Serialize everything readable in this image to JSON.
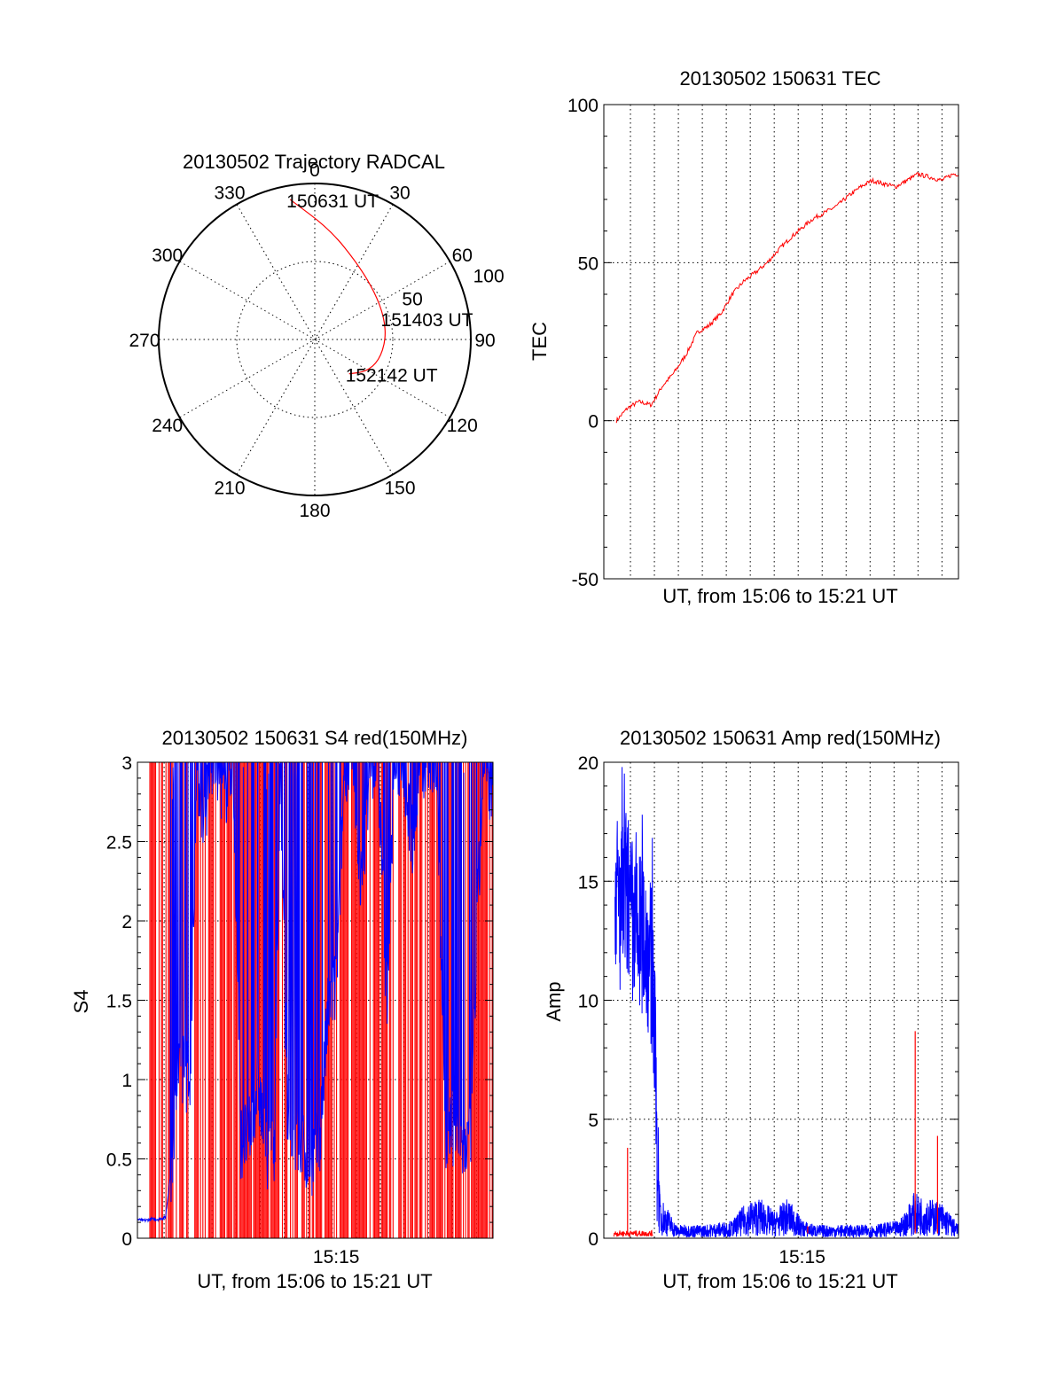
{
  "colors": {
    "red": "#ff0000",
    "blue": "#0000ff",
    "ink": "#000000"
  },
  "chart_data": [
    {
      "id": "trajectory",
      "type": "polar",
      "title": "20130502 Trajectory RADCAL",
      "azimuth_labels": [
        "0",
        "30",
        "60",
        "90",
        "120",
        "150",
        "180",
        "210",
        "240",
        "270",
        "300",
        "330"
      ],
      "radial_ring_labels": [
        "50",
        "100"
      ],
      "series": [
        {
          "name": "trajectory",
          "color": "red",
          "points": [
            {
              "az": 350,
              "el": 8
            },
            {
              "az": 8,
              "el": 26
            },
            {
              "az": 30,
              "el": 40
            },
            {
              "az": 52,
              "el": 46
            },
            {
              "az": 72,
              "el": 48
            },
            {
              "az": 90,
              "el": 49
            },
            {
              "az": 108,
              "el": 51
            },
            {
              "az": 122,
              "el": 55
            },
            {
              "az": 135,
              "el": 62
            }
          ]
        }
      ],
      "annotations": [
        {
          "text": "150631 UT",
          "az": 350,
          "el": 8
        },
        {
          "text": "151403 UT",
          "az": 73,
          "el": 48
        },
        {
          "text": "152142 UT",
          "az": 135,
          "el": 62
        }
      ]
    },
    {
      "id": "tec",
      "type": "line",
      "title": "20130502 150631 TEC",
      "ylabel": "TEC",
      "xlabel": "UT, from 15:06 to 15:21 UT",
      "xlim": [
        15.108,
        15.362
      ],
      "ylim": [
        -50,
        100
      ],
      "yticks": [
        "100",
        "50",
        "0",
        "-50"
      ],
      "xtick_labels": [],
      "series": [
        {
          "name": "TEC",
          "color": "red",
          "x": [
            15.117,
            15.125,
            15.133,
            15.142,
            15.15,
            15.158,
            15.167,
            15.175,
            15.183,
            15.192,
            15.2,
            15.208,
            15.217,
            15.225,
            15.233,
            15.242,
            15.25,
            15.258,
            15.267,
            15.275,
            15.283,
            15.292,
            15.3,
            15.308,
            15.317,
            15.325,
            15.333,
            15.342,
            15.35,
            15.358,
            15.362
          ],
          "y": [
            0,
            4,
            6,
            5,
            11,
            15,
            21,
            28,
            30,
            34,
            40,
            44,
            47,
            50,
            54,
            58,
            61,
            64,
            66,
            68,
            71,
            74,
            76,
            75,
            74,
            76,
            78,
            77,
            76,
            78,
            78
          ]
        }
      ]
    },
    {
      "id": "s4",
      "type": "line",
      "title": "20130502 150631 S4 red(150MHz)",
      "ylabel": "S4",
      "xlabel": "UT, from 15:06 to 15:21 UT",
      "xlim": [
        15.108,
        15.362
      ],
      "ylim": [
        0,
        3
      ],
      "yticks": [
        "3",
        "2.5",
        "2",
        "1.5",
        "1",
        "0.5",
        "0"
      ],
      "xtick_labels": [
        {
          "x": 15.25,
          "label": "15:15"
        }
      ],
      "series": [
        {
          "name": "S4 red",
          "color": "red",
          "note": "saturated vertical bursts across the whole interval (0 to above 3)"
        },
        {
          "name": "S4 blue",
          "color": "blue",
          "x": [
            15.108,
            15.112,
            15.118,
            15.123,
            15.128,
            15.133,
            15.137,
            15.141,
            15.146,
            15.15,
            15.156,
            15.16,
            15.165,
            15.17,
            15.176,
            15.182,
            15.188,
            15.194,
            15.2,
            15.206,
            15.21,
            15.215,
            15.22,
            15.226,
            15.232,
            15.238,
            15.244,
            15.25,
            15.256,
            15.262,
            15.268,
            15.274,
            15.28,
            15.286,
            15.292,
            15.298,
            15.304,
            15.31,
            15.316,
            15.322,
            15.328,
            15.334,
            15.34,
            15.346,
            15.352,
            15.356,
            15.362
          ],
          "y": [
            0.12,
            0.11,
            0.12,
            0.12,
            0.13,
            0.5,
            1.05,
            1.1,
            0.9,
            3.0,
            2.6,
            3.0,
            3.0,
            2.8,
            3.0,
            0.6,
            0.65,
            1.0,
            0.55,
            0.6,
            3.0,
            0.8,
            0.6,
            0.55,
            0.5,
            0.6,
            1.4,
            1.6,
            3.0,
            3.0,
            2.2,
            3.0,
            3.0,
            1.5,
            3.0,
            3.0,
            2.5,
            3.0,
            3.0,
            3.0,
            0.6,
            0.7,
            0.55,
            0.65,
            2.3,
            3.0,
            2.8
          ]
        }
      ]
    },
    {
      "id": "amp",
      "type": "line",
      "title": "20130502 150631 Amp red(150MHz)",
      "ylabel": "Amp",
      "xlabel": "UT, from 15:06 to 15:21 UT",
      "xlim": [
        15.108,
        15.362
      ],
      "ylim": [
        0,
        20
      ],
      "yticks": [
        "20",
        "15",
        "10",
        "5",
        "0"
      ],
      "xtick_labels": [
        {
          "x": 15.25,
          "label": "15:15"
        }
      ],
      "series": [
        {
          "name": "Amp red",
          "color": "red",
          "baseline": 0.2,
          "spikes": [
            {
              "x": 15.125,
              "y": 3.8
            },
            {
              "x": 15.254,
              "y": 0.5
            },
            {
              "x": 15.331,
              "y": 8.7
            },
            {
              "x": 15.347,
              "y": 4.3
            }
          ],
          "x_end": 15.143
        },
        {
          "name": "Amp blue",
          "color": "blue",
          "x": [
            15.116,
            15.12,
            15.124,
            15.128,
            15.132,
            15.136,
            15.14,
            15.143,
            15.148,
            15.16,
            15.18,
            15.2,
            15.21,
            15.22,
            15.23,
            15.24,
            15.25,
            15.26,
            15.28,
            15.3,
            15.32,
            15.33,
            15.34,
            15.35,
            15.362
          ],
          "y": [
            15.0,
            13.5,
            14.5,
            13.0,
            12.5,
            13.0,
            12.0,
            11.0,
            1.0,
            0.3,
            0.3,
            0.4,
            0.8,
            0.9,
            0.6,
            0.9,
            0.4,
            0.3,
            0.3,
            0.3,
            0.4,
            1.0,
            0.9,
            0.8,
            0.3
          ]
        }
      ]
    }
  ]
}
